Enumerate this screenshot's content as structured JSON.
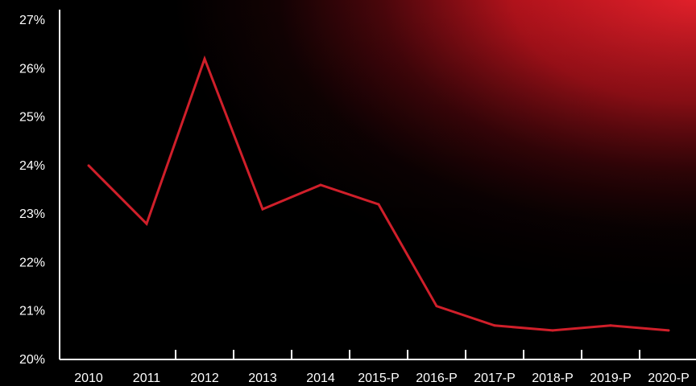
{
  "chart_data": {
    "type": "line",
    "categories": [
      "2010",
      "2011",
      "2012",
      "2013",
      "2014",
      "2015-P",
      "2016-P",
      "2017-P",
      "2018-P",
      "2019-P",
      "2020-P"
    ],
    "series": [
      {
        "values": [
          24.0,
          22.8,
          26.2,
          23.1,
          23.6,
          23.2,
          21.1,
          20.7,
          20.6,
          20.7,
          20.6
        ]
      }
    ],
    "y_ticks": [
      "20%",
      "21%",
      "22%",
      "23%",
      "24%",
      "25%",
      "26%",
      "27%"
    ],
    "ylim": [
      20,
      27
    ],
    "grid": false,
    "colors": {
      "line": "#d01f2a",
      "axis": "#ffffff",
      "background_accent": "#c0121c"
    }
  }
}
